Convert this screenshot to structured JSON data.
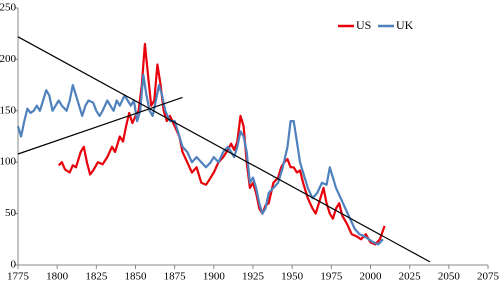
{
  "chart_data": {
    "type": "line",
    "xlim": [
      1775,
      2075
    ],
    "xticks": [
      1775,
      1800,
      1825,
      1850,
      1875,
      1900,
      1925,
      1950,
      1975,
      2000,
      2025,
      2050,
      2075
    ],
    "ylim": [
      0,
      250
    ],
    "yticks": [
      0,
      50,
      100,
      150,
      200,
      250
    ],
    "legend": "top-right",
    "series": [
      {
        "name": "US",
        "color": "#e8000b",
        "x": [
          1801,
          1803,
          1805,
          1808,
          1810,
          1812,
          1815,
          1817,
          1819,
          1821,
          1823,
          1826,
          1829,
          1832,
          1835,
          1837,
          1840,
          1842,
          1844,
          1846,
          1848,
          1850,
          1852,
          1854,
          1856,
          1858,
          1860,
          1862,
          1864,
          1866,
          1868,
          1870,
          1872,
          1875,
          1878,
          1880,
          1883,
          1886,
          1889,
          1892,
          1895,
          1898,
          1900,
          1903,
          1906,
          1909,
          1911,
          1913,
          1915,
          1917,
          1919,
          1921,
          1923,
          1925,
          1927,
          1929,
          1931,
          1933,
          1935,
          1938,
          1941,
          1943,
          1945,
          1947,
          1949,
          1951,
          1953,
          1955,
          1957,
          1960,
          1963,
          1965,
          1968,
          1970,
          1972,
          1974,
          1976,
          1978,
          1980,
          1982,
          1985,
          1988,
          1991,
          1994,
          1997,
          2000,
          2003,
          2006,
          2009
        ],
        "values": [
          97,
          100,
          93,
          90,
          97,
          95,
          110,
          115,
          100,
          88,
          92,
          100,
          98,
          105,
          115,
          110,
          125,
          120,
          135,
          148,
          138,
          145,
          150,
          175,
          215,
          185,
          155,
          160,
          195,
          175,
          150,
          140,
          145,
          135,
          125,
          110,
          100,
          90,
          95,
          80,
          78,
          85,
          90,
          100,
          105,
          112,
          118,
          112,
          120,
          145,
          135,
          100,
          75,
          80,
          70,
          55,
          50,
          58,
          60,
          80,
          85,
          95,
          100,
          103,
          95,
          95,
          90,
          92,
          80,
          65,
          55,
          50,
          65,
          75,
          60,
          50,
          45,
          55,
          60,
          48,
          40,
          30,
          28,
          25,
          30,
          22,
          20,
          25,
          38
        ]
      },
      {
        "name": "UK",
        "color": "#4f81bd",
        "x": [
          1775,
          1777,
          1779,
          1781,
          1783,
          1785,
          1787,
          1789,
          1791,
          1793,
          1795,
          1797,
          1799,
          1801,
          1803,
          1806,
          1808,
          1810,
          1812,
          1814,
          1816,
          1818,
          1820,
          1823,
          1825,
          1827,
          1829,
          1832,
          1834,
          1836,
          1838,
          1840,
          1843,
          1845,
          1847,
          1849,
          1851,
          1853,
          1855,
          1857,
          1859,
          1861,
          1863,
          1865,
          1867,
          1869,
          1872,
          1875,
          1878,
          1880,
          1883,
          1886,
          1889,
          1892,
          1895,
          1898,
          1900,
          1903,
          1906,
          1909,
          1911,
          1913,
          1915,
          1917,
          1919,
          1921,
          1923,
          1925,
          1927,
          1929,
          1931,
          1933,
          1935,
          1938,
          1941,
          1944,
          1947,
          1949,
          1951,
          1953,
          1955,
          1957,
          1960,
          1963,
          1966,
          1969,
          1972,
          1974,
          1976,
          1978,
          1981,
          1984,
          1987,
          1990,
          1993,
          1996,
          1999,
          2002,
          2005,
          2008
        ],
        "values": [
          135,
          125,
          140,
          152,
          148,
          150,
          155,
          150,
          160,
          170,
          165,
          150,
          155,
          160,
          155,
          150,
          160,
          175,
          165,
          155,
          145,
          155,
          160,
          158,
          150,
          145,
          150,
          160,
          155,
          150,
          160,
          155,
          165,
          160,
          155,
          160,
          140,
          150,
          185,
          165,
          150,
          145,
          160,
          175,
          165,
          150,
          140,
          140,
          125,
          115,
          110,
          100,
          105,
          100,
          95,
          100,
          105,
          100,
          110,
          115,
          110,
          105,
          115,
          130,
          125,
          110,
          80,
          85,
          75,
          60,
          50,
          55,
          70,
          75,
          80,
          95,
          115,
          140,
          140,
          120,
          100,
          90,
          75,
          65,
          70,
          80,
          78,
          95,
          85,
          75,
          65,
          55,
          45,
          35,
          30,
          28,
          25,
          22,
          20,
          25
        ]
      }
    ],
    "trend_lines": [
      {
        "color": "#000000",
        "x": [
          1775,
          2038
        ],
        "values": [
          222,
          3
        ]
      },
      {
        "color": "#000000",
        "x": [
          1775,
          1880
        ],
        "values": [
          108,
          163
        ]
      }
    ]
  }
}
